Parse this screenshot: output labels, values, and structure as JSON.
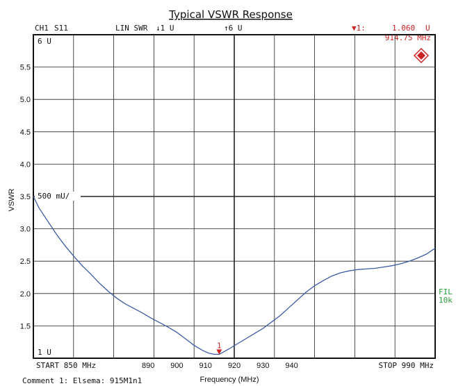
{
  "header": {
    "channel": "CH1",
    "param": "S11",
    "format": "LIN SWR",
    "scale": "↓1 U",
    "ref": "↑6 U",
    "marker_label": "▼1:",
    "marker_value": "1.060",
    "marker_unit": "U",
    "marker_freq": "914.75 MHz"
  },
  "screen": {
    "top_label": "6 U",
    "bottom_label": "1 U",
    "div_label": "500 mU/",
    "start_label": "START  850 MHz",
    "stop_label": "STOP  990 MHz",
    "filter_line1": "FIL",
    "filter_line2": "10k",
    "comment": "Comment 1: Elsema: 915M1n1",
    "marker_number": "1"
  },
  "colors": {
    "trace": "#3b5ba5",
    "marker": "#cc2222",
    "grid": "#222222",
    "logo": "#cc2222"
  },
  "chart_data": {
    "type": "line",
    "title": "Typical VSWR Response",
    "xlabel": "Frequency (MHz)",
    "ylabel": "VSWR",
    "xlim": [
      850,
      990
    ],
    "ylim": [
      1.0,
      6.0
    ],
    "grid": true,
    "x_ticks": [
      "890",
      "900",
      "910",
      "920",
      "930",
      "940"
    ],
    "x_tick_values": [
      890,
      900,
      910,
      920,
      930,
      940
    ],
    "y_ticks": [
      "1.5",
      "2.0",
      "2.5",
      "3.0",
      "3.5",
      "4.0",
      "4.5",
      "5.0",
      "5.5"
    ],
    "y_tick_values": [
      1.5,
      2.0,
      2.5,
      3.0,
      3.5,
      4.0,
      4.5,
      5.0,
      5.5
    ],
    "series": [
      {
        "x": [
          850,
          852,
          855,
          858,
          861,
          864,
          867,
          870,
          873,
          876,
          879,
          882,
          885,
          888,
          891,
          894,
          897,
          900,
          903,
          906,
          909,
          911,
          913,
          914.75,
          916,
          918,
          921,
          924,
          927,
          930,
          933,
          936,
          939,
          942,
          945,
          948,
          951,
          954,
          957,
          960,
          963,
          966,
          969,
          972,
          975,
          978,
          981,
          984,
          987,
          990
        ],
        "y": [
          3.5,
          3.32,
          3.12,
          2.92,
          2.74,
          2.58,
          2.43,
          2.3,
          2.16,
          2.04,
          1.93,
          1.84,
          1.77,
          1.7,
          1.62,
          1.55,
          1.48,
          1.4,
          1.3,
          1.2,
          1.12,
          1.08,
          1.06,
          1.06,
          1.09,
          1.14,
          1.22,
          1.3,
          1.38,
          1.46,
          1.56,
          1.66,
          1.78,
          1.9,
          2.02,
          2.12,
          2.2,
          2.27,
          2.32,
          2.35,
          2.37,
          2.38,
          2.39,
          2.41,
          2.43,
          2.46,
          2.5,
          2.55,
          2.61,
          2.7
        ]
      }
    ],
    "marker": {
      "x": 914.75,
      "y": 1.06
    }
  }
}
